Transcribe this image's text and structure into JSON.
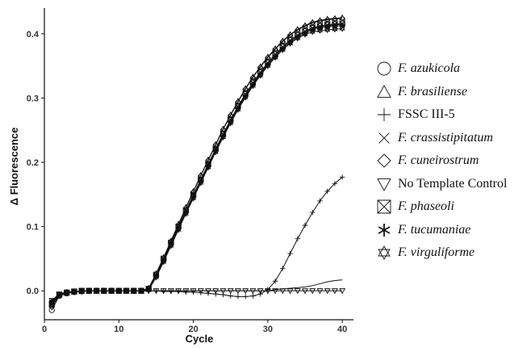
{
  "chart_data": {
    "type": "line",
    "title": "",
    "xlabel": "Cycle",
    "ylabel": "Δ Fluorescence",
    "xlim": [
      0,
      41.5
    ],
    "ylim": [
      -0.045,
      0.44
    ],
    "x_ticks": [
      0,
      10,
      20,
      30,
      40
    ],
    "x_tick_labels": [
      "0",
      "10",
      "20",
      "30",
      "40"
    ],
    "y_ticks": [
      0.0,
      0.1,
      0.2,
      0.3,
      0.4
    ],
    "y_tick_labels": [
      "0.0",
      "0.1",
      "0.2",
      "0.3",
      "0.4"
    ],
    "grid": false,
    "legend_position": "right",
    "x": [
      1,
      2,
      3,
      4,
      5,
      6,
      7,
      8,
      9,
      10,
      11,
      12,
      13,
      14,
      15,
      16,
      17,
      18,
      19,
      20,
      21,
      22,
      23,
      24,
      25,
      26,
      27,
      28,
      29,
      30,
      31,
      32,
      33,
      34,
      35,
      36,
      37,
      38,
      39,
      40
    ],
    "series": [
      {
        "name": "F. azukicola",
        "marker": "circle",
        "italic": true,
        "values": [
          -0.03,
          -0.008,
          -0.004,
          -0.002,
          -0.001,
          0,
          0,
          0,
          0,
          0,
          0,
          0,
          0,
          0.003,
          0.025,
          0.05,
          0.075,
          0.1,
          0.125,
          0.149,
          0.173,
          0.197,
          0.221,
          0.244,
          0.266,
          0.287,
          0.306,
          0.324,
          0.34,
          0.355,
          0.368,
          0.38,
          0.39,
          0.398,
          0.404,
          0.409,
          0.412,
          0.414,
          0.415,
          0.416
        ]
      },
      {
        "name": "F. brasiliense",
        "marker": "triangle-up",
        "italic": true,
        "values": [
          -0.022,
          -0.006,
          -0.003,
          -0.002,
          -0.001,
          0,
          0,
          0,
          0,
          0,
          0,
          0,
          0,
          0.004,
          0.027,
          0.052,
          0.078,
          0.104,
          0.13,
          0.155,
          0.18,
          0.204,
          0.228,
          0.252,
          0.274,
          0.295,
          0.315,
          0.333,
          0.349,
          0.364,
          0.377,
          0.389,
          0.399,
          0.407,
          0.413,
          0.418,
          0.421,
          0.423,
          0.424,
          0.425
        ]
      },
      {
        "name": "FSSC III-5",
        "marker": "plus",
        "italic": false,
        "values": [
          -0.02,
          -0.006,
          -0.003,
          -0.002,
          -0.001,
          0,
          0,
          0,
          0,
          0,
          0,
          0,
          0,
          0,
          0,
          -0.001,
          -0.001,
          -0.001,
          -0.002,
          -0.002,
          -0.003,
          -0.004,
          -0.005,
          -0.006,
          -0.008,
          -0.009,
          -0.009,
          -0.008,
          -0.005,
          0.002,
          0.015,
          0.035,
          0.058,
          0.081,
          0.102,
          0.122,
          0.14,
          0.155,
          0.167,
          0.177
        ]
      },
      {
        "name": "F. crassistipitatum",
        "marker": "x",
        "italic": true,
        "values": [
          -0.018,
          -0.005,
          -0.002,
          -0.001,
          0,
          0,
          0,
          0,
          0,
          0,
          0,
          0,
          0,
          0.002,
          0.024,
          0.049,
          0.074,
          0.099,
          0.124,
          0.148,
          0.172,
          0.196,
          0.22,
          0.243,
          0.265,
          0.286,
          0.305,
          0.323,
          0.339,
          0.354,
          0.367,
          0.379,
          0.389,
          0.397,
          0.403,
          0.408,
          0.411,
          0.413,
          0.414,
          0.415
        ]
      },
      {
        "name": "F. cuneirostrum",
        "marker": "diamond",
        "italic": true,
        "values": [
          -0.025,
          -0.007,
          -0.003,
          -0.002,
          -0.001,
          0,
          0,
          0,
          0,
          0,
          0,
          0,
          0,
          0.004,
          0.026,
          0.051,
          0.077,
          0.103,
          0.129,
          0.154,
          0.179,
          0.203,
          0.227,
          0.251,
          0.273,
          0.294,
          0.314,
          0.332,
          0.348,
          0.363,
          0.376,
          0.388,
          0.398,
          0.406,
          0.412,
          0.417,
          0.42,
          0.422,
          0.423,
          0.424
        ]
      },
      {
        "name": "No Template Control",
        "marker": "triangle-down",
        "italic": false,
        "values": [
          -0.015,
          -0.005,
          -0.002,
          -0.001,
          0,
          0,
          0,
          0,
          0,
          0,
          0,
          0,
          0,
          0,
          0,
          0,
          0,
          0,
          0,
          0,
          0,
          0,
          0,
          0,
          0,
          0,
          0,
          0,
          0,
          0,
          0,
          0,
          0,
          0,
          0,
          0,
          0,
          0,
          0,
          0
        ]
      },
      {
        "name": "F. phaseoli",
        "marker": "square-x",
        "italic": true,
        "values": [
          -0.02,
          -0.006,
          -0.003,
          -0.001,
          0,
          0,
          0,
          0,
          0,
          0,
          0,
          0,
          0,
          0.003,
          0.025,
          0.05,
          0.075,
          0.1,
          0.125,
          0.149,
          0.173,
          0.197,
          0.221,
          0.244,
          0.266,
          0.287,
          0.306,
          0.324,
          0.34,
          0.355,
          0.368,
          0.38,
          0.39,
          0.398,
          0.404,
          0.409,
          0.412,
          0.414,
          0.415,
          0.416
        ]
      },
      {
        "name": "F. tucumaniae",
        "marker": "asterisk",
        "italic": true,
        "values": [
          -0.016,
          -0.005,
          -0.002,
          -0.001,
          0,
          0,
          0,
          0,
          0,
          0,
          0,
          0,
          0,
          0.002,
          0.023,
          0.047,
          0.072,
          0.097,
          0.122,
          0.146,
          0.17,
          0.194,
          0.218,
          0.241,
          0.263,
          0.284,
          0.303,
          0.321,
          0.337,
          0.352,
          0.365,
          0.377,
          0.387,
          0.395,
          0.401,
          0.406,
          0.409,
          0.411,
          0.412,
          0.413
        ]
      },
      {
        "name": "F. virguliforme",
        "marker": "star6",
        "italic": true,
        "values": [
          -0.02,
          -0.006,
          -0.002,
          -0.001,
          0,
          0,
          0,
          0,
          0,
          0,
          0,
          0,
          0,
          0.001,
          0.021,
          0.045,
          0.07,
          0.095,
          0.12,
          0.144,
          0.168,
          0.192,
          0.216,
          0.239,
          0.261,
          0.282,
          0.301,
          0.319,
          0.335,
          0.35,
          0.363,
          0.375,
          0.385,
          0.393,
          0.399,
          0.403,
          0.405,
          0.406,
          0.407,
          0.408
        ]
      },
      {
        "name": "",
        "marker": "none",
        "italic": false,
        "values": [
          -0.015,
          -0.005,
          -0.002,
          -0.001,
          0,
          0,
          0,
          0,
          0,
          0,
          0,
          0,
          0,
          0,
          0,
          0,
          0,
          0,
          0,
          0,
          0,
          0,
          0,
          0,
          0,
          0,
          0,
          0,
          0,
          0,
          0.002,
          0.003,
          0.004,
          0.005,
          0.006,
          0.008,
          0.011,
          0.014,
          0.016,
          0.017
        ]
      }
    ]
  }
}
